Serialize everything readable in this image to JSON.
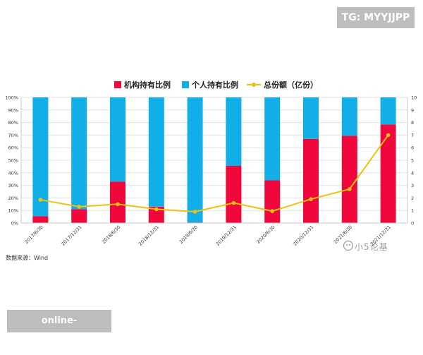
{
  "overlays": {
    "top_badge": "TG: MYYJJPP",
    "bottom_badge": "online-soccerbet.com",
    "source_note": "数据来源：Wind",
    "watermark": "小5论基"
  },
  "colors": {
    "institutional": "#f0073c",
    "individual": "#12aee8",
    "total_line": "#f2c10f",
    "grid": "#e0e0e0",
    "axis_text": "#333333"
  },
  "chart_data": {
    "type": "bar",
    "stacked": true,
    "title": "",
    "categories": [
      "2017/6/30",
      "2017/12/31",
      "2018/6/30",
      "2018/12/31",
      "2019/6/30",
      "2019/12/31",
      "2020/6/30",
      "2020/12/31",
      "2021/6/30",
      "2021/12/31"
    ],
    "series": [
      {
        "name": "机构持有比例",
        "type": "bar",
        "axis": "left",
        "values": [
          5.5,
          11,
          33,
          13,
          0.5,
          45.5,
          34,
          67,
          69.5,
          78.5
        ]
      },
      {
        "name": "个人持有比例",
        "type": "bar",
        "axis": "left",
        "values": [
          94.5,
          89,
          67,
          87,
          99.5,
          54.5,
          66,
          33,
          30.5,
          21.5
        ]
      },
      {
        "name": "总份额（亿份）",
        "type": "line",
        "axis": "right",
        "values": [
          1.85,
          1.3,
          1.5,
          1.1,
          0.9,
          1.6,
          0.95,
          1.9,
          2.7,
          7.0
        ]
      }
    ],
    "y_left": {
      "min": 0,
      "max": 100,
      "ticks": [
        "0%",
        "10%",
        "20%",
        "30%",
        "40%",
        "50%",
        "60%",
        "70%",
        "80%",
        "90%",
        "100%"
      ]
    },
    "y_right": {
      "min": 0,
      "max": 10,
      "ticks": [
        "0",
        "1",
        "2",
        "3",
        "4",
        "5",
        "6",
        "7",
        "8",
        "9",
        "10"
      ]
    },
    "legend": [
      "机构持有比例",
      "个人持有比例",
      "总份额（亿份）"
    ],
    "legend_position": "top-center",
    "grid": true
  }
}
